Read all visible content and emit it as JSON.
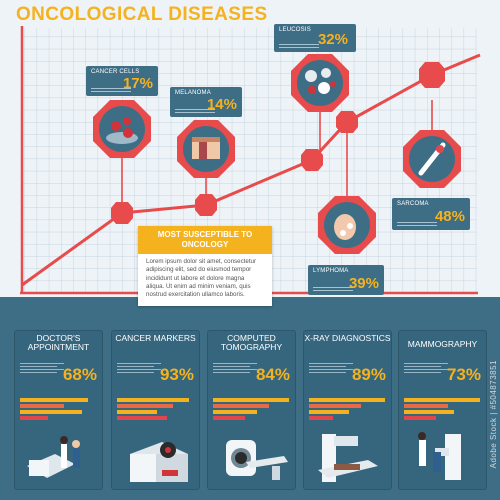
{
  "title": "ONCOLOGICAL DISEASES",
  "chart_data": {
    "type": "line",
    "title": "ONCOLOGICAL DISEASES",
    "series": [
      {
        "values": [
          17,
          14,
          39,
          32,
          48
        ],
        "labels": [
          "CANCER CELLS",
          "MELANOMA",
          "LYMPHOMA",
          "LEUCOSIS",
          "SARCOMA"
        ]
      }
    ],
    "points": [
      {
        "label": "CANCER CELLS",
        "value": "17%"
      },
      {
        "label": "MELANOMA",
        "value": "14%"
      },
      {
        "label": "LYMPHOMA",
        "value": "39%"
      },
      {
        "label": "LEUCOSIS",
        "value": "32%"
      },
      {
        "label": "SARCOMA",
        "value": "48%"
      }
    ],
    "grid": true
  },
  "susceptible": {
    "heading": "MOST SUSCEPTIBLE TO ONCOLOGY",
    "body": "Lorem ipsum dolor sit amet, consectetur adipiscing elit, sed do eiusmod tempor incididunt ut labore et dolore magna aliqua. Ut enim ad minim veniam, quis nostrud exercitation ullamco laboris."
  },
  "panels": [
    {
      "title": "DOCTOR'S APPOINTMENT",
      "value": "68%",
      "bars": [
        0.85,
        0.55,
        0.78,
        0.35
      ]
    },
    {
      "title": "CANCER MARKERS",
      "value": "93%",
      "bars": [
        0.9,
        0.7,
        0.5,
        0.62
      ]
    },
    {
      "title": "COMPUTED TOMOGRAPHY",
      "value": "84%",
      "bars": [
        0.95,
        0.7,
        0.55,
        0.4
      ]
    },
    {
      "title": "X-RAY DIAGNOSTICS",
      "value": "89%",
      "bars": [
        0.95,
        0.65,
        0.5,
        0.3
      ]
    },
    {
      "title": "MAMMOGRAPHY",
      "value": "73%",
      "bars": [
        0.95,
        0.55,
        0.62,
        0.4
      ]
    }
  ],
  "watermark": "Adobe Stock | #504873851",
  "colors": {
    "accent": "#f5b21f",
    "line": "#e84b4b",
    "panel": "#36667e",
    "grid": "#b8c9d9"
  }
}
